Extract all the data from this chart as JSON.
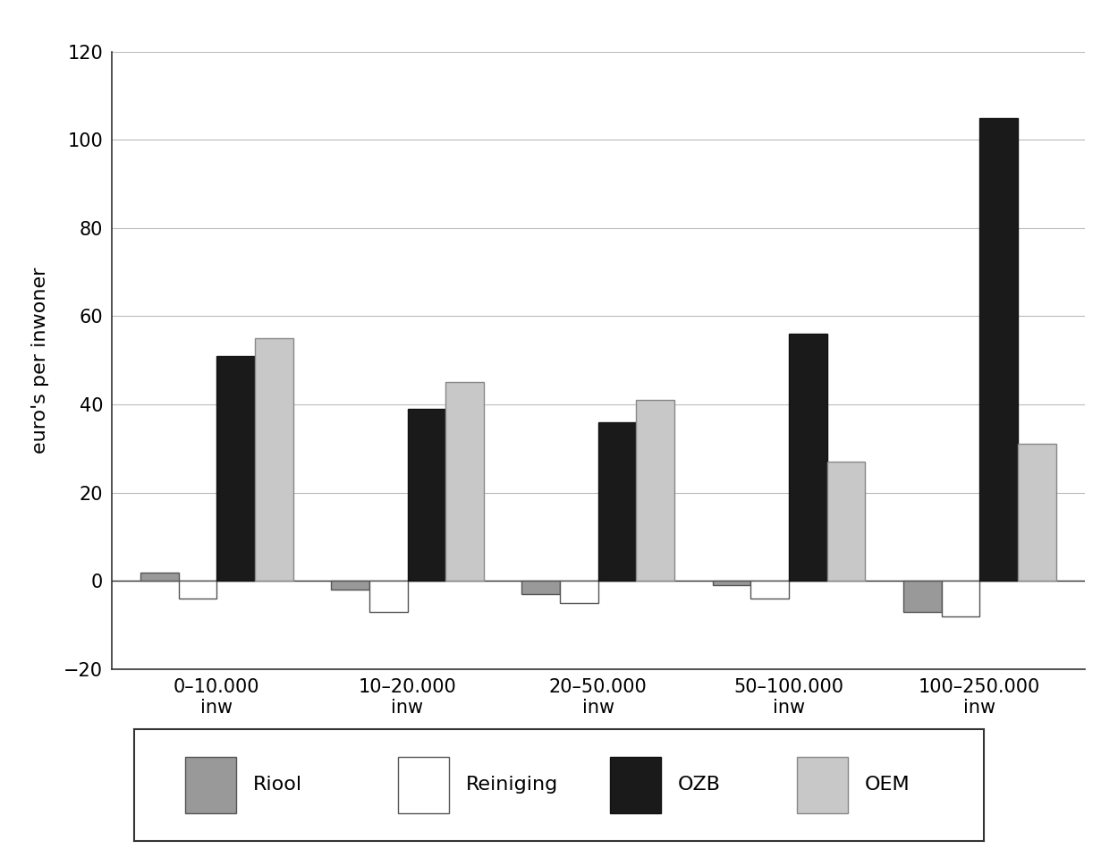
{
  "categories": [
    "0–10.000\ninw",
    "10–20.000\ninw",
    "20–50.000\ninw",
    "50–100.000\ninw",
    "100–250.000\ninw"
  ],
  "series": {
    "Riool": [
      2,
      -2,
      -3,
      -1,
      -7
    ],
    "Reiniging": [
      -4,
      -7,
      -5,
      -4,
      -8
    ],
    "OZB": [
      51,
      39,
      36,
      56,
      105
    ],
    "OEM": [
      55,
      45,
      41,
      27,
      31
    ]
  },
  "colors": {
    "Riool": "#999999",
    "Reiniging": "#ffffff",
    "OZB": "#1a1a1a",
    "OEM": "#c8c8c8"
  },
  "edge_colors": {
    "Riool": "#555555",
    "Reiniging": "#555555",
    "OZB": "#111111",
    "OEM": "#888888"
  },
  "ylabel": "euro's per inwoner",
  "ylim": [
    -20,
    120
  ],
  "yticks": [
    -20,
    0,
    20,
    40,
    60,
    80,
    100,
    120
  ],
  "background_color": "#ffffff",
  "plot_background": "#ffffff",
  "grid_color": "#bbbbbb",
  "legend_fontsize": 16,
  "axis_fontsize": 16,
  "tick_fontsize": 15
}
